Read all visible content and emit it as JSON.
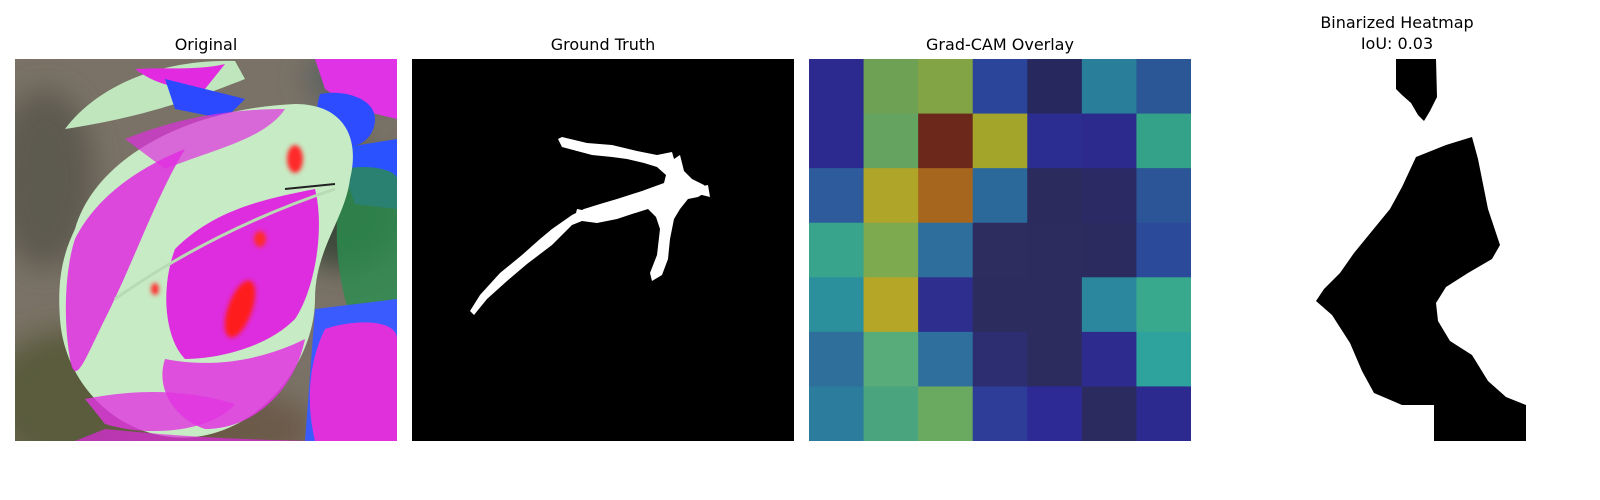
{
  "panels": {
    "original": {
      "title": "Original"
    },
    "ground_truth": {
      "title": "Ground Truth"
    },
    "gradcam": {
      "title": "Grad-CAM Overlay",
      "grid_colors": [
        [
          "#2d2a8f",
          "#6fa155",
          "#83a444",
          "#2b459a",
          "#27285e",
          "#297e9a",
          "#2b5797"
        ],
        [
          "#2d2a8f",
          "#64a460",
          "#6b281b",
          "#a3a52a",
          "#2c2d91",
          "#2c2a8c",
          "#34a189"
        ],
        [
          "#2e5b9c",
          "#aea529",
          "#a7661e",
          "#2b699b",
          "#2b2b5d",
          "#2b2a64",
          "#2b5597"
        ],
        [
          "#38a48c",
          "#7da94f",
          "#2d6e9c",
          "#2d2d5f",
          "#2c2c5e",
          "#2b2b60",
          "#2b4a9a"
        ],
        [
          "#2b8f9c",
          "#b6a628",
          "#2d2e8e",
          "#2c2c5f",
          "#2c2c5f",
          "#2b879d",
          "#38a98d"
        ],
        [
          "#2f6f9c",
          "#58ac7a",
          "#2e6f9d",
          "#2d2d72",
          "#2c2c5f",
          "#2d2c8e",
          "#2ea29c"
        ],
        [
          "#2c7c9e",
          "#4aa47e",
          "#6aaa60",
          "#2d3d98",
          "#2d2a96",
          "#2b2b5f",
          "#2c2a8e"
        ]
      ]
    },
    "binarized": {
      "title_line1": "Binarized Heatmap",
      "title_line2": "IoU: 0.03"
    }
  }
}
